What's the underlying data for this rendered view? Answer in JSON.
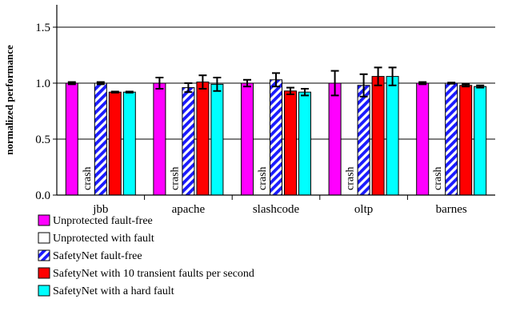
{
  "chart_data": {
    "type": "bar",
    "ylabel": "normalized performance",
    "ylim": [
      0,
      1.7
    ],
    "yticks": [
      0.0,
      0.5,
      1.0,
      1.5
    ],
    "ytick_labels": [
      "0.0",
      "0.5",
      "1.0",
      "1.5"
    ],
    "grid": "horizontal at major ticks",
    "categories": [
      "jbb",
      "apache",
      "slashcode",
      "oltp",
      "barnes"
    ],
    "series": [
      {
        "name": "Unprotected fault-free",
        "color": "#ff00ff",
        "pattern": "solid",
        "values": [
          1.0,
          1.0,
          1.0,
          1.0,
          1.0
        ],
        "err": [
          0.01,
          0.05,
          0.03,
          0.11,
          0.01
        ]
      },
      {
        "name": "Unprotected with fault",
        "color": "#ffffff",
        "pattern": "solid",
        "values": [
          null,
          null,
          null,
          null,
          null
        ],
        "annotation": "crash"
      },
      {
        "name": "SafetyNet fault-free",
        "color": "#1a1aff",
        "pattern": "hatched",
        "values": [
          1.0,
          0.96,
          1.03,
          0.98,
          1.0
        ],
        "err": [
          0.01,
          0.04,
          0.06,
          0.1,
          0.005
        ]
      },
      {
        "name": "SafetyNet with 10 transient faults per second",
        "color": "#ff0000",
        "pattern": "solid",
        "values": [
          0.92,
          1.01,
          0.93,
          1.06,
          0.98
        ],
        "err": [
          0.005,
          0.06,
          0.03,
          0.08,
          0.01
        ]
      },
      {
        "name": "SafetyNet with a hard fault",
        "color": "#00ffff",
        "pattern": "solid",
        "values": [
          0.92,
          0.99,
          0.92,
          1.06,
          0.97
        ],
        "err": [
          0.005,
          0.06,
          0.03,
          0.08,
          0.01
        ]
      }
    ],
    "legend_placement": "bottom-left, below plot"
  }
}
